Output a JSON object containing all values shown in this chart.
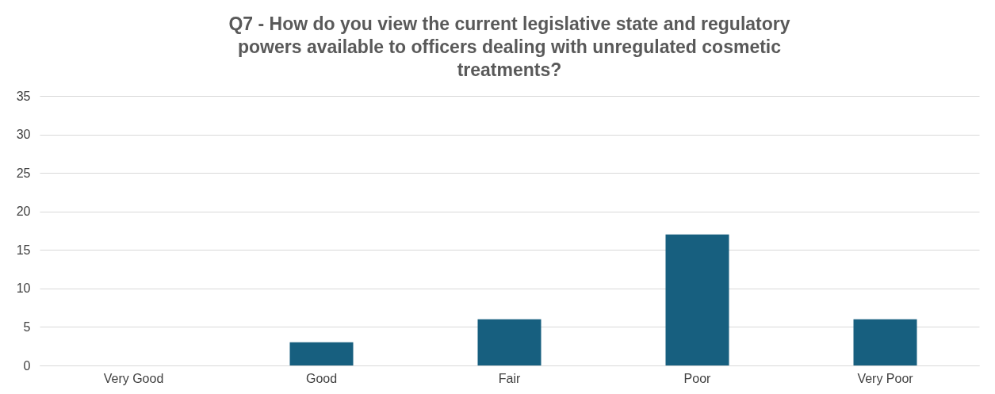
{
  "chart_data": {
    "type": "bar",
    "title": "Q7 - How do you view the current legislative state and regulatory powers available to officers dealing with unregulated cosmetic treatments?",
    "categories": [
      "Very Good",
      "Good",
      "Fair",
      "Poor",
      "Very Poor"
    ],
    "values": [
      0,
      3,
      6,
      17,
      6
    ],
    "color": "#175f7f",
    "ylim": [
      0,
      35
    ],
    "yticks": [
      0,
      5,
      10,
      15,
      20,
      25,
      30,
      35
    ],
    "grid": "y"
  }
}
